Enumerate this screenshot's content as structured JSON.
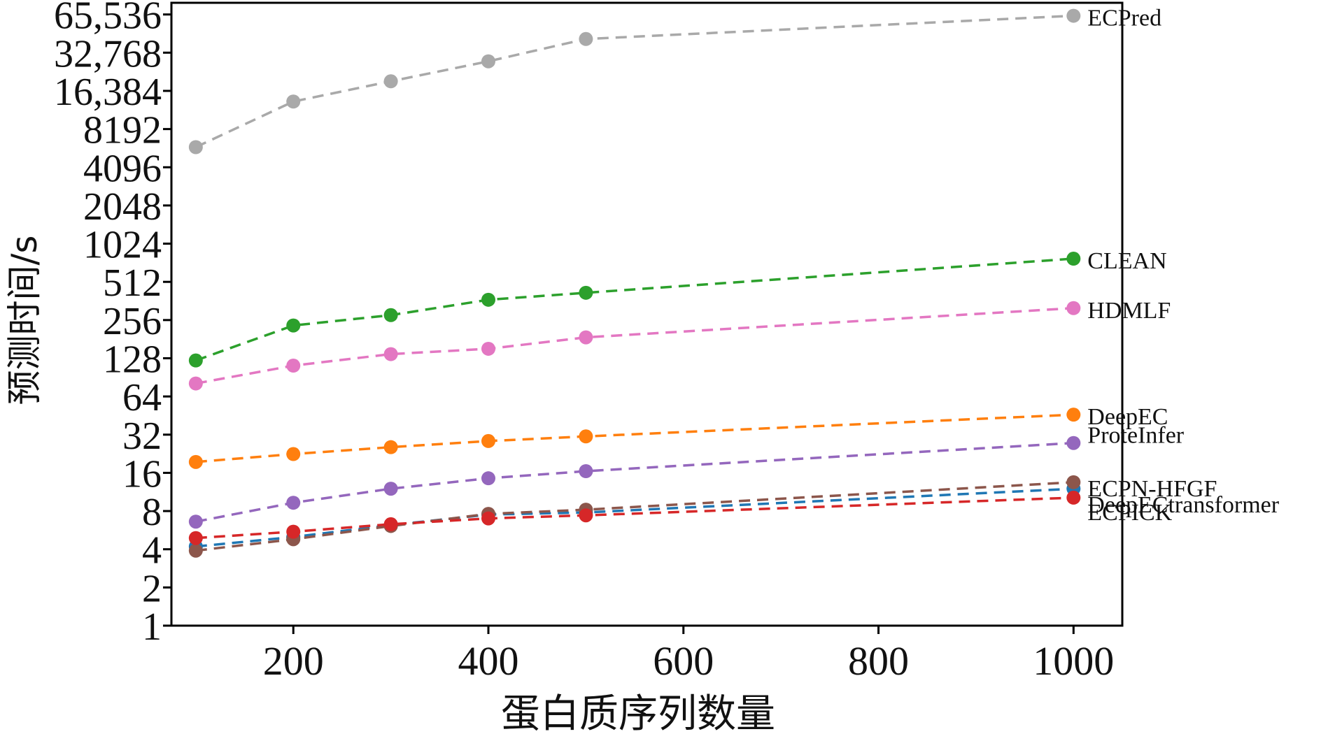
{
  "chart_data": {
    "type": "line",
    "title": "",
    "xlabel": "蛋白质序列数量",
    "ylabel": "预测时间/s",
    "y_scale": "log2",
    "xlim": [
      75,
      1050
    ],
    "ylim": [
      1,
      81000
    ],
    "x_ticks": [
      200,
      400,
      600,
      800,
      1000
    ],
    "y_ticks": [
      1,
      2,
      4,
      8,
      16,
      32,
      64,
      128,
      256,
      512,
      1024,
      2048,
      4096,
      8192,
      16384,
      32768,
      65536
    ],
    "y_tick_labels": [
      "1",
      "2",
      "4",
      "8",
      "16",
      "32",
      "64",
      "128",
      "256",
      "512",
      "1024",
      "2048",
      "4096",
      "8192",
      "16,384",
      "32,768",
      "65,536"
    ],
    "x_tick_labels": [
      "200",
      "400",
      "600",
      "800",
      "1000"
    ],
    "line_style": "dashed",
    "marker": "circle",
    "grid": false,
    "legend": "labels at right end of each series",
    "x": [
      100,
      200,
      300,
      400,
      500,
      1000
    ],
    "series": [
      {
        "name": "ECPred",
        "color": "#a9a9a9",
        "values": [
          5900,
          13500,
          19500,
          28000,
          42000,
          64000
        ]
      },
      {
        "name": "CLEAN",
        "color": "#2ca02c",
        "values": [
          123,
          232,
          280,
          370,
          420,
          780
        ]
      },
      {
        "name": "HDMLF",
        "color": "#e377c2",
        "values": [
          81,
          112,
          138,
          152,
          187,
          318
        ]
      },
      {
        "name": "DeepEC",
        "color": "#ff7f0e",
        "values": [
          19.5,
          22.5,
          25.5,
          28.5,
          31,
          46
        ]
      },
      {
        "name": "ProteInfer",
        "color": "#9467bd",
        "values": [
          6.6,
          9.3,
          12,
          14.5,
          16.5,
          27.5
        ]
      },
      {
        "name": "DeepECtransformer",
        "color": "#1f77b4",
        "values": [
          4.2,
          5,
          6.2,
          7.5,
          7.8,
          12
        ]
      },
      {
        "name": "ECPN-HFGF",
        "color": "#8c564b",
        "values": [
          3.9,
          4.8,
          6.1,
          7.6,
          8.2,
          13.5
        ]
      },
      {
        "name": "ECPICK",
        "color": "#d62728",
        "values": [
          4.9,
          5.5,
          6.3,
          7,
          7.4,
          10.2
        ]
      }
    ]
  }
}
